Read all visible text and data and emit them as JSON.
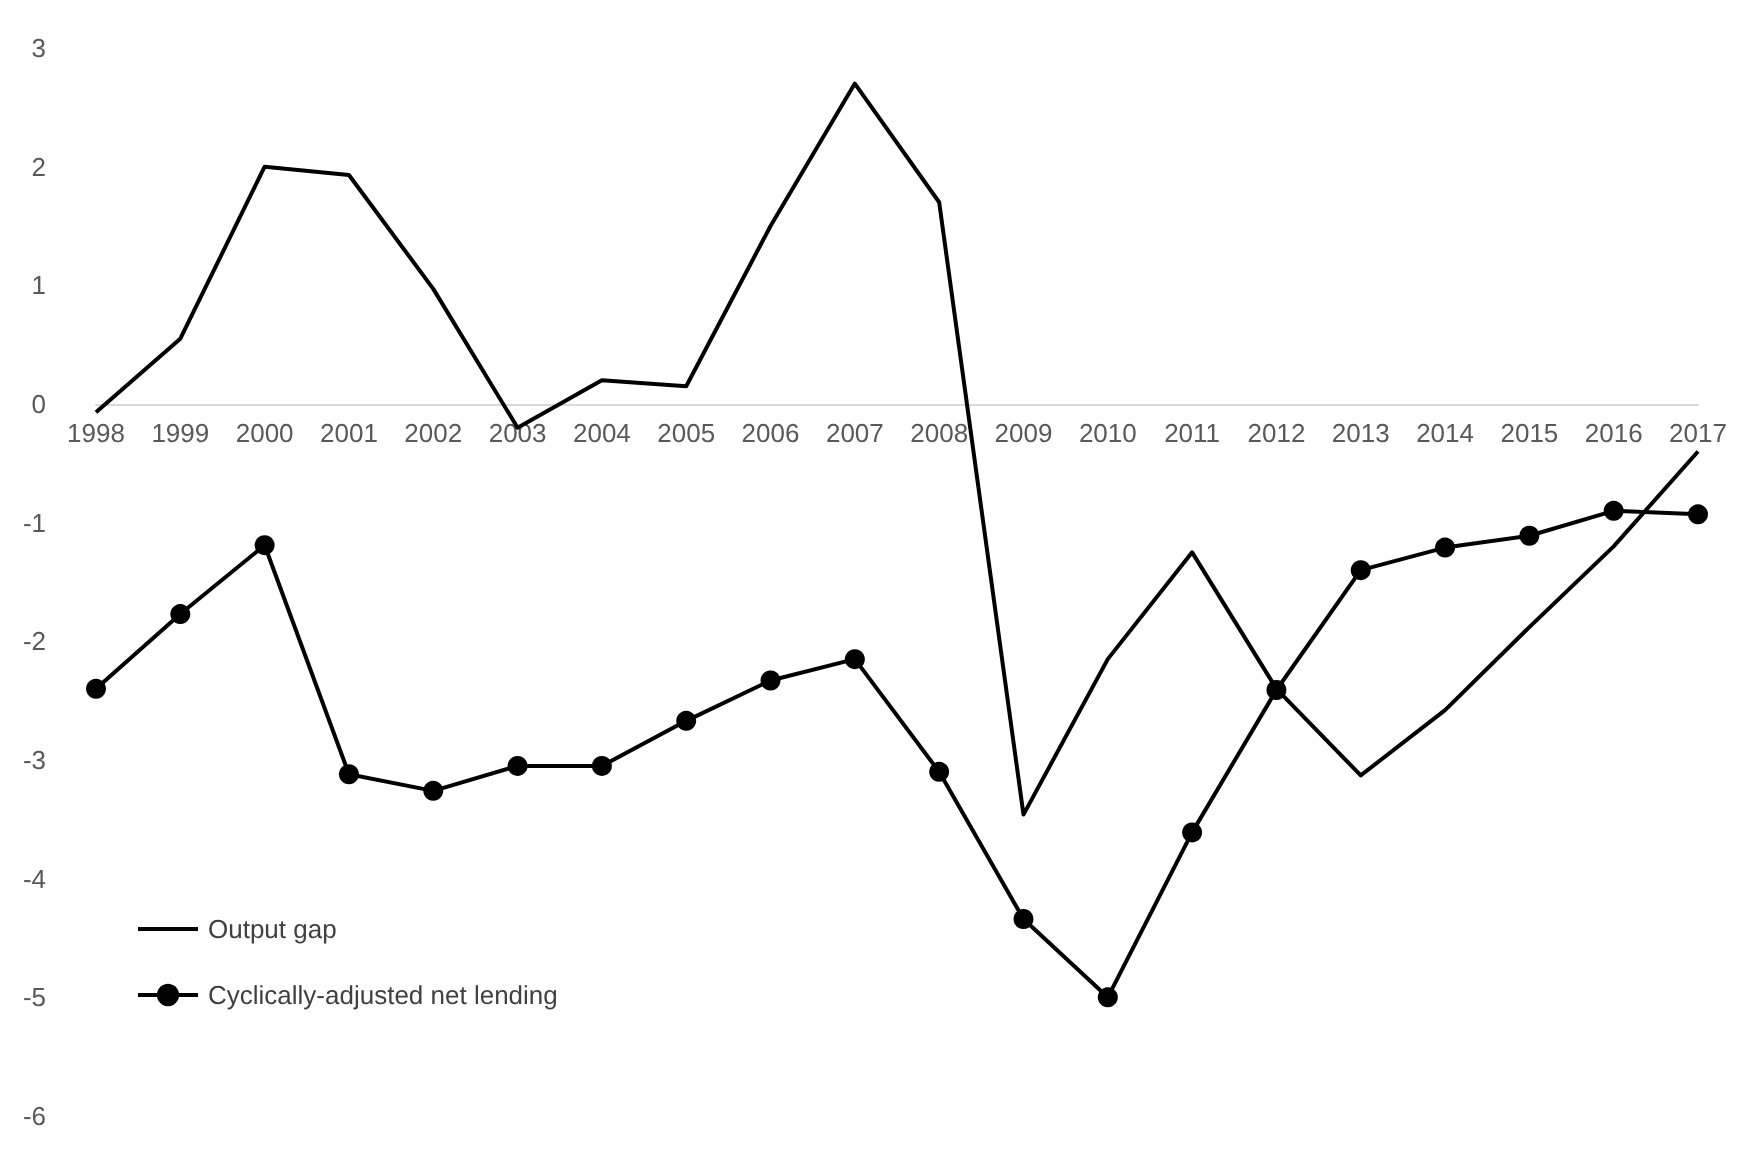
{
  "chart_data": {
    "type": "line",
    "categories": [
      "1998",
      "1999",
      "2000",
      "2001",
      "2002",
      "2003",
      "2004",
      "2005",
      "2006",
      "2007",
      "2008",
      "2009",
      "2010",
      "2011",
      "2012",
      "2013",
      "2014",
      "2015",
      "2016",
      "2017"
    ],
    "series": [
      {
        "name": "Output gap",
        "color": "#000000",
        "marker": "none",
        "values": [
          -0.07,
          0.55,
          2.0,
          1.93,
          0.97,
          -0.2,
          0.2,
          0.15,
          1.5,
          2.7,
          1.7,
          -3.46,
          -2.15,
          -1.25,
          -2.4,
          -3.13,
          -2.58,
          -1.88,
          -1.2,
          -0.4
        ]
      },
      {
        "name": "Cyclically-adjusted net lending",
        "color": "#000000",
        "marker": "circle",
        "values": [
          -2.4,
          -1.77,
          -1.19,
          -3.12,
          -3.26,
          -3.05,
          -3.05,
          -2.67,
          -2.33,
          -2.15,
          -3.1,
          -4.34,
          -5.0,
          -3.61,
          -2.41,
          -1.4,
          -1.21,
          -1.11,
          -0.9,
          -0.93
        ]
      }
    ],
    "ylim": [
      -6,
      3
    ],
    "yticks": [
      -6,
      -5,
      -4,
      -3,
      -2,
      -1,
      0,
      1,
      2,
      3
    ],
    "grid": false,
    "legend": "bottom left"
  }
}
